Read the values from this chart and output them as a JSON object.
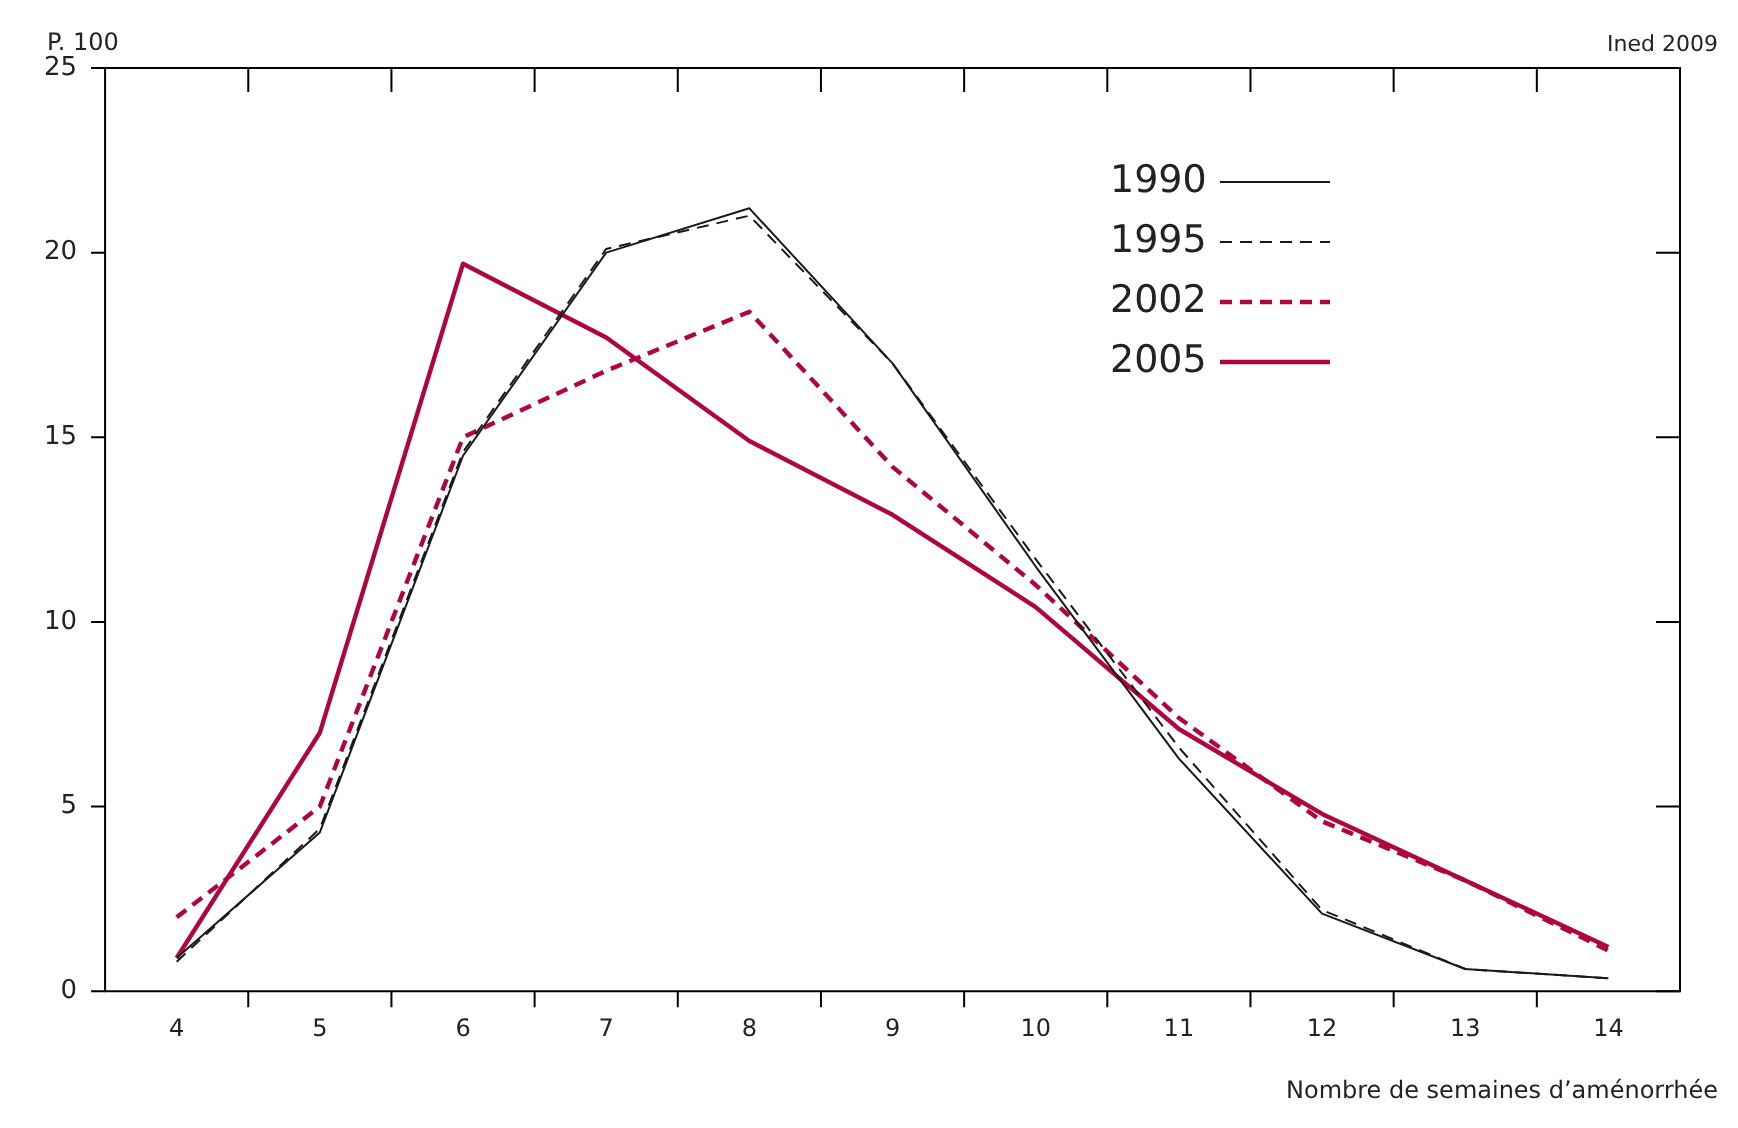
{
  "chart_data": {
    "type": "line",
    "ylabel": "P. 100",
    "xlabel": "Nombre de semaines d’aménorrhée",
    "annotations": [
      "Ined 2009"
    ],
    "categories": [
      "4",
      "5",
      "6",
      "7",
      "8",
      "9",
      "10",
      "11",
      "12",
      "13",
      "14"
    ],
    "ylim": [
      0,
      25
    ],
    "yticks": [
      0,
      5,
      10,
      15,
      20,
      25
    ],
    "grid": false,
    "legend": "top right",
    "marker": "none",
    "series": [
      {
        "name": "1990",
        "color": "#1a1a1a",
        "line_style": "solid",
        "values": [
          0.9,
          4.3,
          14.5,
          20.0,
          21.2,
          17.0,
          11.5,
          6.3,
          2.1,
          0.6,
          0.35
        ]
      },
      {
        "name": "1995",
        "color": "#1a1a1a",
        "line_style": "dashed",
        "values": [
          0.8,
          4.4,
          14.6,
          20.1,
          21.0,
          17.0,
          11.7,
          6.6,
          2.2,
          0.6,
          0.35
        ]
      },
      {
        "name": "2002",
        "color": "#b0063f",
        "line_style": "dashed",
        "values": [
          2.0,
          5.0,
          15.0,
          16.8,
          18.4,
          14.2,
          11.0,
          7.4,
          4.6,
          3.0,
          1.1
        ]
      },
      {
        "name": "2005",
        "color": "#b0063f",
        "line_style": "solid",
        "values": [
          0.9,
          7.0,
          19.7,
          17.7,
          14.9,
          12.9,
          10.4,
          7.1,
          4.8,
          3.0,
          1.2
        ]
      }
    ]
  }
}
